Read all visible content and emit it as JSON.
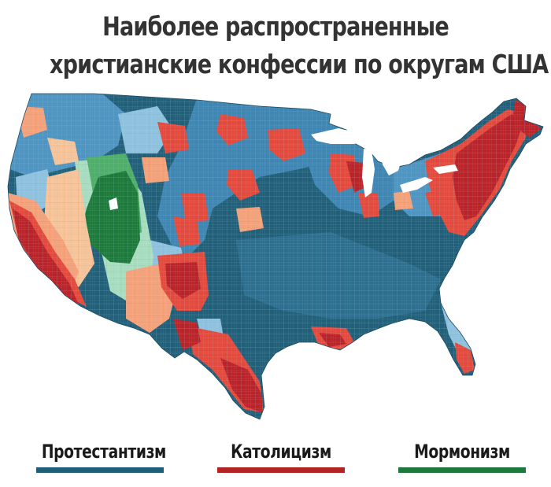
{
  "title": {
    "line1": "Наиболее распространенные",
    "line2": "христианские конфессии по округам США"
  },
  "legend": [
    {
      "label": "Протестантизм",
      "color": "#1f5f7a"
    },
    {
      "label": "Католицизм",
      "color": "#b32424"
    },
    {
      "label": "Мормонизм",
      "color": "#1d7a3c"
    }
  ],
  "palette": {
    "protestant_dark": "#22607a",
    "protestant_mid": "#3f86b3",
    "protestant_light": "#8fc2de",
    "catholic_dark": "#b8242a",
    "catholic_mid": "#e34a3e",
    "catholic_light": "#f5a27a",
    "catholic_pale": "#f7c49a",
    "mormon_dark": "#1d7a3c",
    "mormon_mid": "#4fae6a",
    "mormon_light": "#a8ddc0"
  }
}
